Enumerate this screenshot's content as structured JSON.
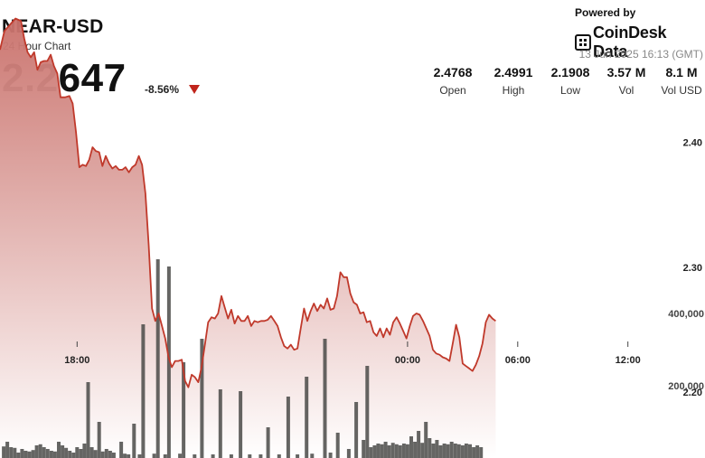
{
  "header": {
    "symbol": "NEAR-USD",
    "subtitle": "24 Hour Chart",
    "price": "2.2647",
    "change": "-8.56%"
  },
  "branding": {
    "powered_by": "Powered by",
    "logo_text": "CoinDesk Data",
    "timestamp": "13 Jun 2025 16:13 (GMT)"
  },
  "stats": [
    {
      "value": "2.4768",
      "label": "Open"
    },
    {
      "value": "2.4991",
      "label": "High"
    },
    {
      "value": "2.1908",
      "label": "Low"
    },
    {
      "value": "3.57 M",
      "label": "Vol"
    },
    {
      "value": "8.1 M",
      "label": "Vol USD"
    }
  ],
  "colors": {
    "line": "#c0392b",
    "area_top": "#c9706a",
    "volume_bar": "#4a4a48",
    "down_arrow": "#c0241b"
  },
  "chart_data": {
    "type": "area",
    "x_range_hours": [
      -22.2,
      16.2
    ],
    "x_ticks": [
      {
        "t": -18,
        "label": "18:00"
      },
      {
        "t": 0,
        "label": "00:00"
      },
      {
        "t": 6,
        "label": "06:00"
      },
      {
        "t": 12,
        "label": "12:00"
      }
    ],
    "price_axis": {
      "range": [
        2.1474,
        2.5138
      ],
      "ticks": [
        2.4,
        2.3,
        2.2
      ],
      "tick_labels": [
        "2.40",
        "2.30",
        "2.20"
      ]
    },
    "volume_axis": {
      "max": 600000,
      "ticks": [
        400000,
        200000
      ],
      "tick_labels": [
        "400,000",
        "200,000"
      ]
    },
    "price_series": [
      [
        -22.2,
        2.474
      ],
      [
        -21.96,
        2.489
      ],
      [
        -21.6,
        2.495
      ],
      [
        -21.36,
        2.499
      ],
      [
        -21.06,
        2.497
      ],
      [
        -20.88,
        2.483
      ],
      [
        -20.7,
        2.472
      ],
      [
        -20.52,
        2.468
      ],
      [
        -20.34,
        2.472
      ],
      [
        -20.16,
        2.458
      ],
      [
        -19.98,
        2.464
      ],
      [
        -19.8,
        2.465
      ],
      [
        -19.62,
        2.465
      ],
      [
        -19.44,
        2.47
      ],
      [
        -19.26,
        2.461
      ],
      [
        -19.08,
        2.455
      ],
      [
        -18.9,
        2.436
      ],
      [
        -18.66,
        2.436
      ],
      [
        -18.42,
        2.437
      ],
      [
        -18.24,
        2.431
      ],
      [
        -18.06,
        2.408
      ],
      [
        -17.88,
        2.38
      ],
      [
        -17.7,
        2.382
      ],
      [
        -17.52,
        2.381
      ],
      [
        -17.34,
        2.386
      ],
      [
        -17.16,
        2.396
      ],
      [
        -16.98,
        2.393
      ],
      [
        -16.8,
        2.392
      ],
      [
        -16.62,
        2.381
      ],
      [
        -16.44,
        2.389
      ],
      [
        -16.26,
        2.383
      ],
      [
        -16.08,
        2.379
      ],
      [
        -15.9,
        2.381
      ],
      [
        -15.72,
        2.378
      ],
      [
        -15.54,
        2.378
      ],
      [
        -15.36,
        2.38
      ],
      [
        -15.18,
        2.376
      ],
      [
        -15.0,
        2.38
      ],
      [
        -14.82,
        2.382
      ],
      [
        -14.64,
        2.389
      ],
      [
        -14.46,
        2.382
      ],
      [
        -14.28,
        2.359
      ],
      [
        -14.1,
        2.318
      ],
      [
        -13.92,
        2.267
      ],
      [
        -13.74,
        2.257
      ],
      [
        -13.56,
        2.263
      ],
      [
        -13.38,
        2.253
      ],
      [
        -13.2,
        2.243
      ],
      [
        -13.02,
        2.228
      ],
      [
        -12.84,
        2.22
      ],
      [
        -12.66,
        2.225
      ],
      [
        -12.48,
        2.225
      ],
      [
        -12.3,
        2.226
      ],
      [
        -12.12,
        2.209
      ],
      [
        -11.94,
        2.204
      ],
      [
        -11.76,
        2.214
      ],
      [
        -11.58,
        2.212
      ],
      [
        -11.4,
        2.208
      ],
      [
        -11.22,
        2.22
      ],
      [
        -11.04,
        2.238
      ],
      [
        -10.86,
        2.256
      ],
      [
        -10.68,
        2.26
      ],
      [
        -10.5,
        2.259
      ],
      [
        -10.32,
        2.263
      ],
      [
        -10.14,
        2.277
      ],
      [
        -9.96,
        2.268
      ],
      [
        -9.78,
        2.259
      ],
      [
        -9.6,
        2.266
      ],
      [
        -9.42,
        2.255
      ],
      [
        -9.24,
        2.261
      ],
      [
        -9.06,
        2.257
      ],
      [
        -8.88,
        2.257
      ],
      [
        -8.7,
        2.261
      ],
      [
        -8.52,
        2.253
      ],
      [
        -8.34,
        2.257
      ],
      [
        -8.16,
        2.256
      ],
      [
        -7.98,
        2.257
      ],
      [
        -7.8,
        2.257
      ],
      [
        -7.62,
        2.258
      ],
      [
        -7.44,
        2.261
      ],
      [
        -7.26,
        2.257
      ],
      [
        -7.08,
        2.253
      ],
      [
        -6.9,
        2.244
      ],
      [
        -6.72,
        2.237
      ],
      [
        -6.54,
        2.235
      ],
      [
        -6.36,
        2.238
      ],
      [
        -6.18,
        2.234
      ],
      [
        -6.0,
        2.235
      ],
      [
        -5.82,
        2.251
      ],
      [
        -5.64,
        2.267
      ],
      [
        -5.46,
        2.257
      ],
      [
        -5.28,
        2.265
      ],
      [
        -5.1,
        2.271
      ],
      [
        -4.92,
        2.265
      ],
      [
        -4.74,
        2.27
      ],
      [
        -4.56,
        2.267
      ],
      [
        -4.38,
        2.275
      ],
      [
        -4.2,
        2.266
      ],
      [
        -4.02,
        2.267
      ],
      [
        -3.84,
        2.277
      ],
      [
        -3.66,
        2.296
      ],
      [
        -3.48,
        2.292
      ],
      [
        -3.3,
        2.292
      ],
      [
        -3.12,
        2.279
      ],
      [
        -2.94,
        2.272
      ],
      [
        -2.76,
        2.27
      ],
      [
        -2.58,
        2.263
      ],
      [
        -2.4,
        2.264
      ],
      [
        -2.22,
        2.256
      ],
      [
        -2.04,
        2.257
      ],
      [
        -1.86,
        2.248
      ],
      [
        -1.68,
        2.245
      ],
      [
        -1.5,
        2.251
      ],
      [
        -1.32,
        2.244
      ],
      [
        -1.14,
        2.251
      ],
      [
        -0.96,
        2.246
      ],
      [
        -0.78,
        2.256
      ],
      [
        -0.6,
        2.26
      ],
      [
        -0.42,
        2.255
      ],
      [
        -0.24,
        2.249
      ],
      [
        -0.06,
        2.243
      ],
      [
        0.12,
        2.253
      ],
      [
        0.3,
        2.261
      ],
      [
        0.48,
        2.263
      ],
      [
        0.66,
        2.262
      ],
      [
        0.84,
        2.257
      ],
      [
        1.02,
        2.251
      ],
      [
        1.2,
        2.245
      ],
      [
        1.38,
        2.234
      ],
      [
        1.56,
        2.231
      ],
      [
        1.74,
        2.23
      ],
      [
        1.92,
        2.228
      ],
      [
        2.1,
        2.227
      ],
      [
        2.28,
        2.225
      ],
      [
        2.46,
        2.239
      ],
      [
        2.64,
        2.254
      ],
      [
        2.82,
        2.244
      ],
      [
        3.0,
        2.223
      ],
      [
        3.18,
        2.221
      ],
      [
        3.36,
        2.219
      ],
      [
        3.54,
        2.217
      ],
      [
        3.72,
        2.222
      ],
      [
        3.9,
        2.229
      ],
      [
        4.08,
        2.239
      ],
      [
        4.26,
        2.256
      ],
      [
        4.44,
        2.262
      ],
      [
        4.62,
        2.259
      ],
      [
        4.8,
        2.257
      ]
    ],
    "volume_series": [
      [
        -22.0,
        32000
      ],
      [
        -21.8,
        45000
      ],
      [
        -21.6,
        30000
      ],
      [
        -21.4,
        28000
      ],
      [
        -21.2,
        15000
      ],
      [
        -21.0,
        25000
      ],
      [
        -20.8,
        20000
      ],
      [
        -20.6,
        18000
      ],
      [
        -20.4,
        22000
      ],
      [
        -20.2,
        35000
      ],
      [
        -20.0,
        38000
      ],
      [
        -19.8,
        30000
      ],
      [
        -19.6,
        25000
      ],
      [
        -19.4,
        20000
      ],
      [
        -19.2,
        18000
      ],
      [
        -19.0,
        45000
      ],
      [
        -18.8,
        35000
      ],
      [
        -18.6,
        28000
      ],
      [
        -18.4,
        20000
      ],
      [
        -18.2,
        15000
      ],
      [
        -18.0,
        30000
      ],
      [
        -17.8,
        25000
      ],
      [
        -17.6,
        40000
      ],
      [
        -17.4,
        210000
      ],
      [
        -17.2,
        30000
      ],
      [
        -17.0,
        22000
      ],
      [
        -16.8,
        100000
      ],
      [
        -16.6,
        18000
      ],
      [
        -16.4,
        25000
      ],
      [
        -16.2,
        20000
      ],
      [
        -16.0,
        15000
      ],
      [
        -15.6,
        45000
      ],
      [
        -15.4,
        12000
      ],
      [
        -15.2,
        10000
      ],
      [
        -14.9,
        95000
      ],
      [
        -14.6,
        10000
      ],
      [
        -14.4,
        370000
      ],
      [
        -13.8,
        12000
      ],
      [
        -13.6,
        550000
      ],
      [
        -13.2,
        10000
      ],
      [
        -13.0,
        530000
      ],
      [
        -12.4,
        12000
      ],
      [
        -12.2,
        265000
      ],
      [
        -11.6,
        10000
      ],
      [
        -11.2,
        330000
      ],
      [
        -10.6,
        10000
      ],
      [
        -10.2,
        190000
      ],
      [
        -9.6,
        10000
      ],
      [
        -9.1,
        185000
      ],
      [
        -8.6,
        10000
      ],
      [
        -8.0,
        10000
      ],
      [
        -7.6,
        85000
      ],
      [
        -7.0,
        10000
      ],
      [
        -6.5,
        170000
      ],
      [
        -6.0,
        10000
      ],
      [
        -5.5,
        225000
      ],
      [
        -5.2,
        12000
      ],
      [
        -4.5,
        330000
      ],
      [
        -4.2,
        15000
      ],
      [
        -3.8,
        70000
      ],
      [
        -3.2,
        25000
      ],
      [
        -2.8,
        155000
      ],
      [
        -2.4,
        50000
      ],
      [
        -2.2,
        255000
      ],
      [
        -2.0,
        30000
      ],
      [
        -1.8,
        35000
      ],
      [
        -1.6,
        40000
      ],
      [
        -1.4,
        38000
      ],
      [
        -1.2,
        45000
      ],
      [
        -1.0,
        35000
      ],
      [
        -0.8,
        42000
      ],
      [
        -0.6,
        38000
      ],
      [
        -0.4,
        35000
      ],
      [
        -0.2,
        40000
      ],
      [
        0.0,
        38000
      ],
      [
        0.2,
        60000
      ],
      [
        0.4,
        45000
      ],
      [
        0.6,
        75000
      ],
      [
        0.8,
        42000
      ],
      [
        1.0,
        100000
      ],
      [
        1.2,
        55000
      ],
      [
        1.4,
        40000
      ],
      [
        1.6,
        50000
      ],
      [
        1.8,
        35000
      ],
      [
        2.0,
        40000
      ],
      [
        2.2,
        38000
      ],
      [
        2.4,
        45000
      ],
      [
        2.6,
        40000
      ],
      [
        2.8,
        38000
      ],
      [
        3.0,
        35000
      ],
      [
        3.2,
        40000
      ],
      [
        3.4,
        38000
      ],
      [
        3.6,
        30000
      ],
      [
        3.8,
        35000
      ],
      [
        4.0,
        30000
      ]
    ]
  }
}
